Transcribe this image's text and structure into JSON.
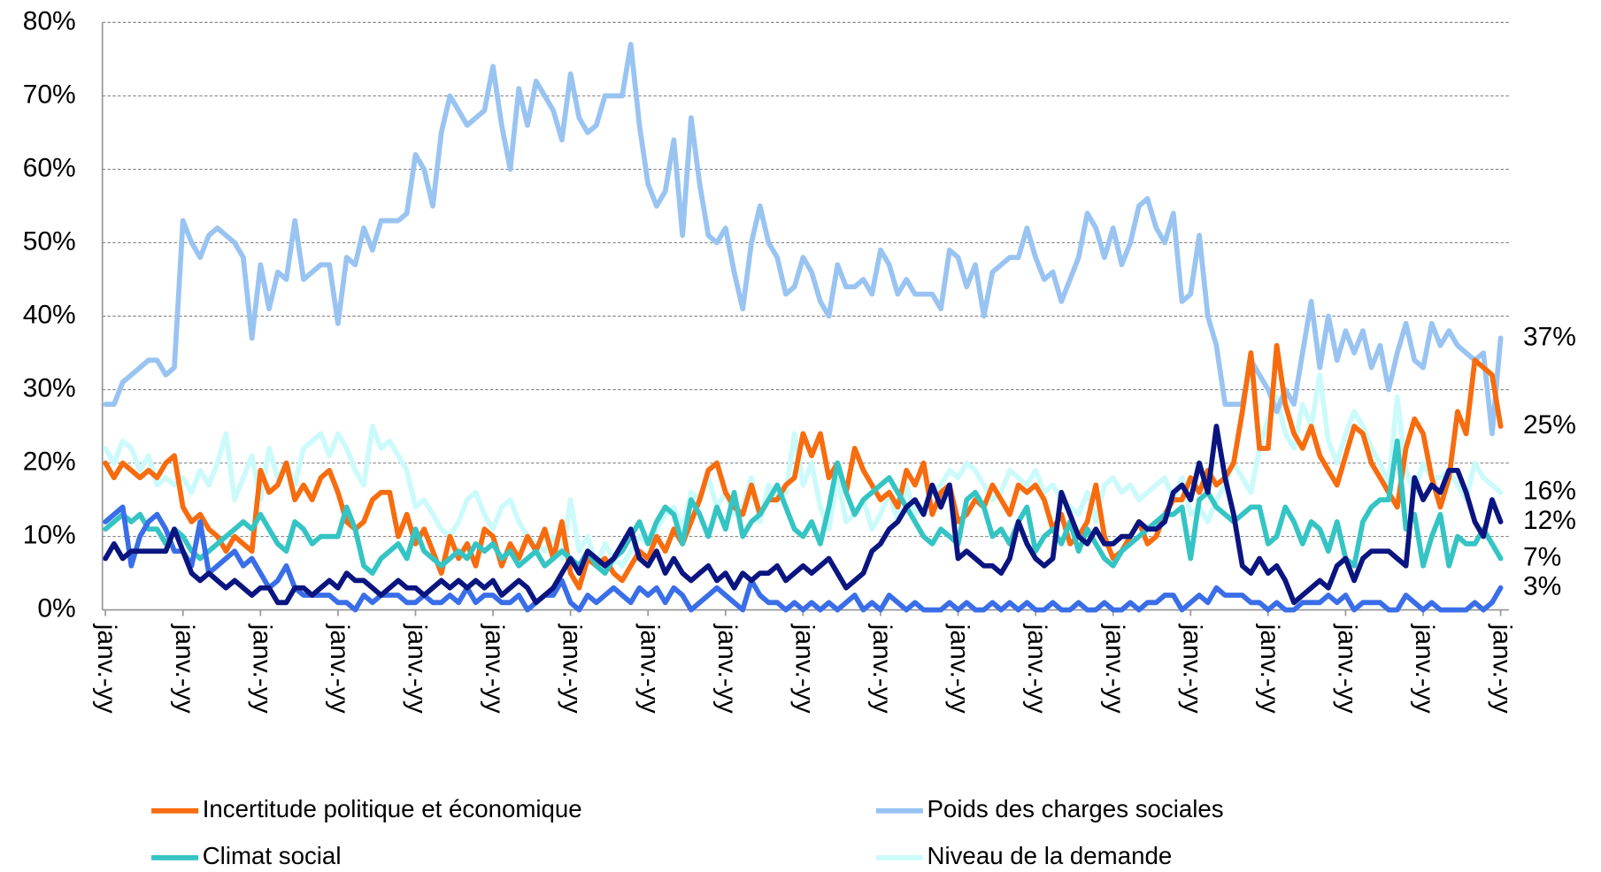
{
  "chart_data": {
    "type": "line",
    "categories": [
      "janv.-yy",
      null,
      null,
      null,
      null,
      null,
      null,
      null,
      null,
      "janv.-yy",
      null,
      null,
      null,
      null,
      null,
      null,
      null,
      null,
      "janv.-yy",
      null,
      null,
      null,
      null,
      null,
      null,
      null,
      null,
      "janv.-yy",
      null,
      null,
      null,
      null,
      null,
      null,
      null,
      null,
      "janv.-yy",
      null,
      null,
      null,
      null,
      null,
      null,
      null,
      null,
      "janv.-yy",
      null,
      null,
      null,
      null,
      null,
      null,
      null,
      null,
      "janv.-yy",
      null,
      null,
      null,
      null,
      null,
      null,
      null,
      null,
      "janv.-yy",
      null,
      null,
      null,
      null,
      null,
      null,
      null,
      null,
      "janv.-yy",
      null,
      null,
      null,
      null,
      null,
      null,
      null,
      null,
      "janv.-yy",
      null,
      null,
      null,
      null,
      null,
      null,
      null,
      null,
      "janv.-yy",
      null,
      null,
      null,
      null,
      null,
      null,
      null,
      null,
      "janv.-yy",
      null,
      null,
      null,
      null,
      null,
      null,
      null,
      null,
      "janv.-yy",
      null,
      null,
      null,
      null,
      null,
      null,
      null,
      null,
      "janv.-yy",
      null,
      null,
      null,
      null,
      null,
      null,
      null,
      null,
      "janv.-yy",
      null,
      null,
      null,
      null,
      null,
      null,
      null,
      null,
      "janv.-yy",
      null,
      null,
      null,
      null,
      null,
      null,
      null,
      null,
      "janv.-yy",
      null,
      null,
      null,
      null,
      null,
      null,
      null,
      null,
      "janv.-yy",
      null,
      null,
      null,
      null,
      null,
      null,
      null,
      null,
      "janv.-yy"
    ],
    "series": [
      {
        "name": "Incertitude politique et économique",
        "color": "#f76c0e",
        "end_label": "25%",
        "values": [
          20,
          18,
          20,
          19,
          18,
          19,
          18,
          20,
          21,
          14,
          12,
          13,
          11,
          10,
          8,
          10,
          9,
          8,
          19,
          16,
          17,
          20,
          15,
          17,
          15,
          18,
          19,
          16,
          12,
          11,
          12,
          15,
          16,
          16,
          10,
          13,
          9,
          11,
          8,
          5,
          10,
          7,
          9,
          6,
          11,
          10,
          6,
          9,
          7,
          10,
          8,
          11,
          7,
          12,
          5,
          3,
          7,
          6,
          7,
          5,
          4,
          6,
          8,
          7,
          10,
          8,
          11,
          9,
          12,
          15,
          19,
          20,
          16,
          14,
          13,
          17,
          13,
          15,
          15,
          17,
          18,
          24,
          21,
          24,
          18,
          20,
          16,
          22,
          19,
          17,
          15,
          16,
          14,
          19,
          17,
          20,
          13,
          16,
          17,
          12,
          13,
          15,
          14,
          17,
          15,
          13,
          17,
          16,
          17,
          15,
          11,
          13,
          9,
          10,
          12,
          17,
          10,
          7,
          8,
          10,
          12,
          9,
          10,
          13,
          15,
          15,
          18,
          16,
          19,
          17,
          18,
          20,
          27,
          35,
          22,
          22,
          36,
          28,
          24,
          22,
          25,
          21,
          19,
          17,
          21,
          25,
          24,
          20,
          18,
          16,
          14,
          22,
          26,
          24,
          18,
          14,
          18,
          27,
          24,
          34,
          33,
          32,
          25
        ]
      },
      {
        "name": "Poids des charges sociales",
        "color": "#99c4f2",
        "end_label": "37%",
        "values": [
          28,
          28,
          31,
          32,
          33,
          34,
          34,
          32,
          33,
          53,
          50,
          48,
          51,
          52,
          51,
          50,
          48,
          37,
          47,
          41,
          46,
          45,
          53,
          45,
          46,
          47,
          47,
          39,
          48,
          47,
          52,
          49,
          53,
          53,
          53,
          54,
          62,
          60,
          55,
          65,
          70,
          68,
          66,
          67,
          68,
          74,
          66,
          60,
          71,
          66,
          72,
          70,
          68,
          64,
          73,
          67,
          65,
          66,
          70,
          70,
          70,
          77,
          66,
          58,
          55,
          57,
          64,
          51,
          67,
          58,
          51,
          50,
          52,
          46,
          41,
          50,
          55,
          50,
          48,
          43,
          44,
          48,
          46,
          42,
          40,
          47,
          44,
          44,
          45,
          43,
          49,
          47,
          43,
          45,
          43,
          43,
          43,
          41,
          49,
          48,
          44,
          47,
          40,
          46,
          47,
          48,
          48,
          52,
          48,
          45,
          46,
          42,
          45,
          48,
          54,
          52,
          48,
          52,
          47,
          50,
          55,
          56,
          52,
          50,
          54,
          42,
          43,
          51,
          40,
          36,
          28,
          28,
          28,
          34,
          32,
          30,
          27,
          30,
          28,
          35,
          42,
          33,
          40,
          34,
          38,
          35,
          38,
          33,
          36,
          30,
          35,
          39,
          34,
          33,
          39,
          36,
          38,
          36,
          35,
          34,
          35,
          24,
          37
        ]
      },
      {
        "name": "Climat social",
        "color": "#35c4c4",
        "end_label": "7%",
        "values": [
          11,
          12,
          13,
          12,
          13,
          11,
          11,
          9,
          11,
          10,
          8,
          7,
          8,
          9,
          10,
          11,
          12,
          11,
          13,
          11,
          9,
          8,
          12,
          11,
          9,
          10,
          10,
          10,
          14,
          11,
          6,
          5,
          7,
          8,
          9,
          7,
          11,
          8,
          7,
          6,
          7,
          8,
          7,
          9,
          8,
          9,
          7,
          8,
          6,
          7,
          8,
          6,
          7,
          8,
          7,
          6,
          8,
          6,
          5,
          7,
          8,
          10,
          12,
          9,
          12,
          14,
          13,
          9,
          15,
          13,
          10,
          14,
          11,
          16,
          10,
          12,
          13,
          15,
          17,
          14,
          11,
          10,
          12,
          9,
          14,
          20,
          16,
          13,
          15,
          16,
          17,
          18,
          16,
          14,
          12,
          10,
          9,
          11,
          10,
          9,
          15,
          16,
          14,
          10,
          11,
          9,
          12,
          14,
          8,
          10,
          11,
          9,
          12,
          8,
          11,
          9,
          7,
          6,
          8,
          9,
          10,
          11,
          12,
          13,
          13,
          14,
          7,
          15,
          16,
          14,
          13,
          12,
          13,
          14,
          14,
          9,
          10,
          14,
          12,
          9,
          12,
          11,
          8,
          12,
          7,
          6,
          12,
          14,
          15,
          15,
          23,
          11,
          13,
          6,
          10,
          13,
          6,
          10,
          9,
          9,
          11,
          9,
          7
        ]
      },
      {
        "name": "Niveau de la demande",
        "color": "#ccfafa",
        "end_label": "16%",
        "values": [
          22,
          20,
          23,
          22,
          19,
          21,
          17,
          18,
          17,
          18,
          16,
          19,
          17,
          20,
          24,
          15,
          18,
          21,
          15,
          22,
          18,
          20,
          17,
          22,
          23,
          24,
          21,
          24,
          22,
          19,
          17,
          25,
          22,
          23,
          21,
          19,
          14,
          15,
          13,
          11,
          10,
          12,
          15,
          16,
          13,
          11,
          14,
          15,
          12,
          10,
          9,
          8,
          10,
          7,
          15,
          8,
          10,
          6,
          9,
          7,
          6,
          8,
          10,
          9,
          11,
          13,
          14,
          11,
          16,
          15,
          18,
          14,
          16,
          13,
          14,
          18,
          12,
          17,
          15,
          16,
          24,
          17,
          20,
          14,
          11,
          18,
          12,
          13,
          15,
          11,
          13,
          16,
          12,
          17,
          13,
          14,
          16,
          17,
          19,
          18,
          20,
          19,
          17,
          15,
          16,
          19,
          18,
          17,
          19,
          16,
          17,
          15,
          14,
          13,
          16,
          12,
          17,
          18,
          16,
          17,
          15,
          16,
          17,
          18,
          15,
          18,
          13,
          14,
          12,
          15,
          17,
          20,
          18,
          16,
          22,
          26,
          29,
          24,
          22,
          28,
          25,
          32,
          23,
          20,
          24,
          27,
          25,
          22,
          20,
          17,
          29,
          19,
          16,
          20,
          18,
          18,
          19,
          17,
          15,
          20,
          18,
          17,
          16
        ]
      },
      {
        "color": "#0b1580",
        "end_label": "12%",
        "values": [
          7,
          9,
          7,
          8,
          8,
          8,
          8,
          8,
          11,
          8,
          5,
          4,
          5,
          4,
          3,
          4,
          3,
          2,
          3,
          3,
          1,
          1,
          3,
          3,
          2,
          3,
          4,
          3,
          5,
          4,
          4,
          3,
          2,
          3,
          4,
          3,
          3,
          2,
          3,
          4,
          3,
          4,
          3,
          4,
          3,
          4,
          2,
          3,
          4,
          3,
          1,
          2,
          3,
          5,
          7,
          5,
          8,
          7,
          6,
          7,
          9,
          11,
          7,
          6,
          8,
          5,
          7,
          5,
          4,
          5,
          6,
          4,
          5,
          3,
          5,
          4,
          5,
          5,
          6,
          4,
          5,
          6,
          5,
          6,
          7,
          5,
          3,
          4,
          5,
          8,
          9,
          11,
          12,
          14,
          15,
          13,
          17,
          14,
          17,
          7,
          8,
          7,
          6,
          6,
          5,
          7,
          12,
          9,
          7,
          6,
          7,
          16,
          13,
          10,
          9,
          11,
          9,
          9,
          10,
          10,
          12,
          11,
          11,
          12,
          16,
          17,
          15,
          20,
          16,
          25,
          18,
          13,
          6,
          5,
          7,
          5,
          6,
          4,
          1,
          2,
          3,
          4,
          3,
          6,
          7,
          4,
          7,
          8,
          8,
          8,
          7,
          6,
          18,
          15,
          17,
          16,
          19,
          19,
          16,
          12,
          10,
          15,
          12
        ]
      },
      {
        "color": "#3a6ee8",
        "end_label": "3%",
        "values": [
          12,
          13,
          14,
          6,
          10,
          12,
          13,
          11,
          8,
          8,
          6,
          12,
          5,
          6,
          7,
          8,
          6,
          7,
          5,
          3,
          4,
          6,
          3,
          2,
          2,
          2,
          2,
          1,
          1,
          0,
          2,
          1,
          2,
          2,
          2,
          1,
          1,
          2,
          1,
          1,
          2,
          1,
          3,
          1,
          2,
          2,
          1,
          1,
          2,
          0,
          1,
          2,
          2,
          4,
          1,
          0,
          2,
          1,
          2,
          3,
          2,
          1,
          3,
          2,
          3,
          1,
          3,
          2,
          0,
          1,
          2,
          3,
          2,
          1,
          0,
          4,
          2,
          1,
          1,
          0,
          1,
          0,
          1,
          0,
          1,
          0,
          1,
          2,
          0,
          1,
          0,
          2,
          1,
          0,
          1,
          0,
          0,
          0,
          1,
          0,
          1,
          0,
          0,
          1,
          0,
          1,
          0,
          1,
          0,
          0,
          1,
          0,
          0,
          1,
          0,
          0,
          1,
          0,
          0,
          1,
          0,
          1,
          1,
          2,
          2,
          0,
          1,
          2,
          1,
          3,
          2,
          2,
          2,
          1,
          1,
          0,
          1,
          0,
          0,
          1,
          1,
          1,
          2,
          1,
          2,
          0,
          1,
          1,
          1,
          0,
          0,
          2,
          1,
          0,
          1,
          0,
          0,
          0,
          0,
          1,
          0,
          1,
          3
        ]
      }
    ],
    "ylim": [
      0,
      80
    ],
    "yticks": [
      {
        "value": 0,
        "label": "0%"
      },
      {
        "value": 10,
        "label": "10%"
      },
      {
        "value": 20,
        "label": "20%"
      },
      {
        "value": 30,
        "label": "30%"
      },
      {
        "value": 40,
        "label": "40%"
      },
      {
        "value": 50,
        "label": "50%"
      },
      {
        "value": 60,
        "label": "60%"
      },
      {
        "value": 70,
        "label": "70%"
      },
      {
        "value": 80,
        "label": "80%"
      }
    ],
    "grid": true
  }
}
